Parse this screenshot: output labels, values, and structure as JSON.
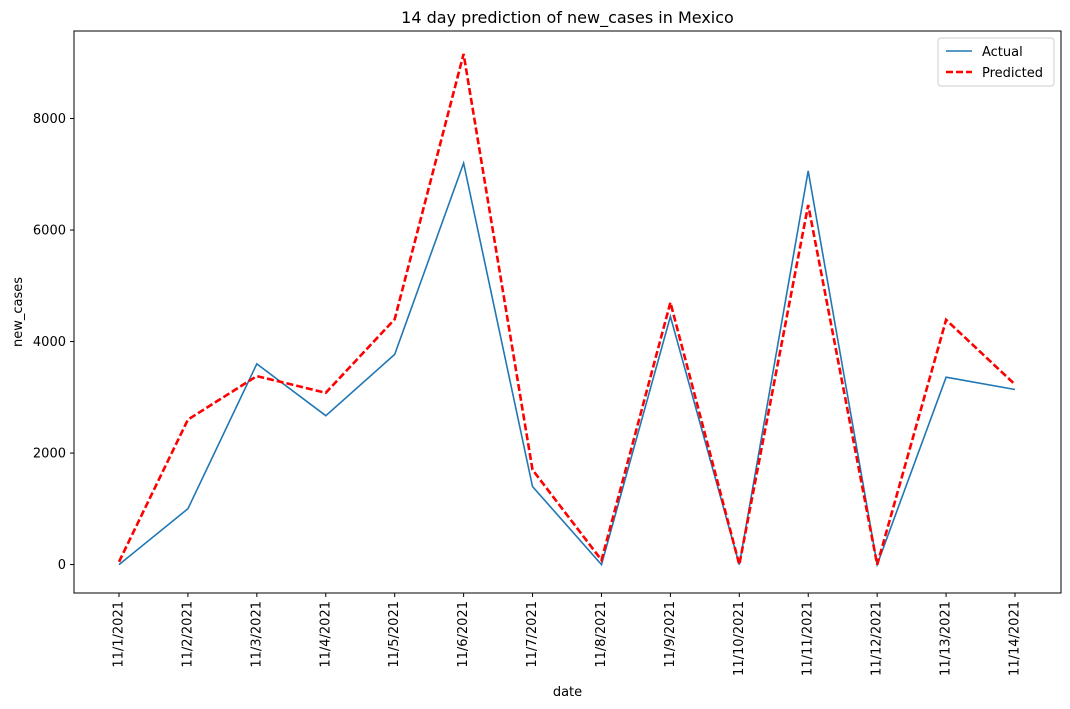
{
  "chart_data": {
    "type": "line",
    "title": "14 day prediction of new_cases in Mexico",
    "xlabel": "date",
    "ylabel": "new_cases",
    "categories": [
      "11/1/2021",
      "11/2/2021",
      "11/3/2021",
      "11/4/2021",
      "11/5/2021",
      "11/6/2021",
      "11/7/2021",
      "11/8/2021",
      "11/9/2021",
      "11/10/2021",
      "11/11/2021",
      "11/12/2021",
      "11/13/2021",
      "11/14/2021"
    ],
    "yticks": [
      0,
      2000,
      4000,
      6000,
      8000
    ],
    "ylim": [
      -510,
      9570
    ],
    "grid": false,
    "legend_position": "top-right",
    "series": [
      {
        "name": "Actual",
        "color": "#1f77b4",
        "line_style": "solid",
        "values": [
          0,
          1000,
          3600,
          2670,
          3770,
          7200,
          1400,
          0,
          4450,
          0,
          7060,
          0,
          3360,
          3140
        ]
      },
      {
        "name": "Predicted",
        "color": "#ff0000",
        "line_style": "dashed",
        "values": [
          50,
          2600,
          3380,
          3080,
          4400,
          9160,
          1700,
          80,
          4700,
          0,
          6450,
          0,
          4390,
          3230
        ]
      }
    ]
  }
}
